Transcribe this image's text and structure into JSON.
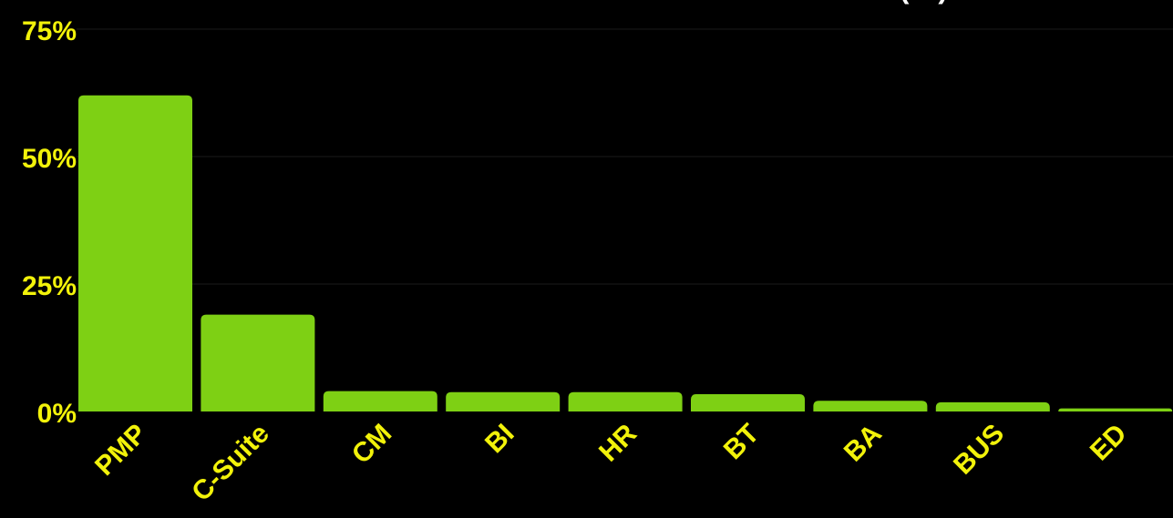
{
  "colors": {
    "background": "#000000",
    "bar": "#7ed014",
    "tick_label": "#f2f20a",
    "title": "#ffffff",
    "gridline": "#1a1a1a"
  },
  "chart_data": {
    "type": "bar",
    "title": "(…)",
    "categories": [
      "PMP",
      "C-Suite",
      "CM",
      "BI",
      "HR",
      "BT",
      "BA",
      "BUS",
      "ED"
    ],
    "values": [
      62,
      19,
      4,
      3.8,
      3.8,
      3.4,
      2.1,
      1.8,
      0.6
    ],
    "y_ticks": [
      "0%",
      "25%",
      "50%",
      "75%"
    ],
    "y_tick_values": [
      0,
      25,
      50,
      75
    ],
    "ylim": [
      0,
      75
    ],
    "unit": "%",
    "grid": true,
    "legend": "none"
  }
}
